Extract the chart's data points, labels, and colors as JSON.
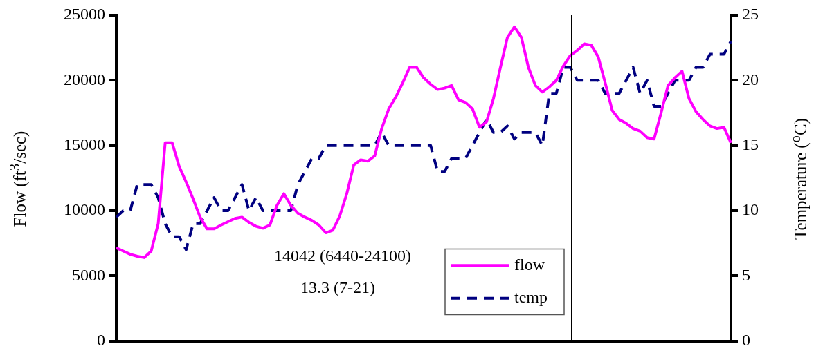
{
  "chart_data": {
    "type": "line",
    "ylabel": "Flow (ft$^{3}$/sec)",
    "y2label": "Temperature ($^{o}$C)",
    "categories": [
      null,
      null,
      null,
      null,
      null,
      null,
      null,
      null,
      null,
      null,
      null,
      null,
      null,
      null,
      null,
      null,
      null,
      null,
      null,
      null,
      null,
      null,
      null,
      null,
      null,
      null,
      null,
      null,
      null,
      null,
      null,
      null,
      null,
      null,
      null,
      null,
      null,
      null,
      null,
      null,
      null,
      null,
      null,
      null,
      null,
      null,
      null,
      null,
      null,
      null,
      null,
      null,
      null,
      null,
      null,
      null,
      null,
      null,
      null,
      null,
      null,
      null,
      null,
      null,
      null,
      null,
      null,
      null,
      null,
      null,
      null,
      null,
      null,
      null,
      null,
      null,
      null,
      null,
      null,
      null,
      null,
      null,
      null,
      null,
      null,
      null,
      null,
      null,
      null
    ],
    "series": [
      {
        "name": "flow",
        "color": "#ff00ff",
        "line_style": "solid",
        "values": [
          7150,
          6900,
          6650,
          6500,
          6400,
          6900,
          9000,
          15200,
          15200,
          13400,
          12200,
          10900,
          9500,
          8600,
          8600,
          8900,
          9150,
          9400,
          9500,
          9100,
          8800,
          8650,
          8900,
          10400,
          11300,
          10400,
          9800,
          9500,
          9250,
          8900,
          8300,
          8500,
          9600,
          11300,
          13500,
          13900,
          13800,
          14200,
          16300,
          17800,
          18700,
          19800,
          21000,
          21000,
          20200,
          19700,
          19300,
          19400,
          19600,
          18500,
          18300,
          17800,
          16400,
          16800,
          18600,
          21000,
          23300,
          24100,
          23300,
          21000,
          19600,
          19100,
          19500,
          20000,
          21100,
          21900,
          22300,
          22800,
          22700,
          21800,
          19800,
          17700,
          17000,
          16700,
          16300,
          16100,
          15600,
          15500,
          17500,
          19600,
          20200,
          20700,
          18600,
          17600,
          17000,
          16500,
          16300,
          16400,
          15200
        ]
      },
      {
        "name": "temp",
        "color": "#000080",
        "line_style": "dashed",
        "axis": "y2",
        "values": [
          9.5,
          10,
          10,
          12,
          12,
          12,
          11,
          9,
          8,
          8,
          7,
          9,
          9,
          10,
          11,
          10,
          10,
          11,
          12,
          10,
          11,
          10,
          10,
          10,
          10,
          10,
          12,
          13,
          14,
          14,
          15,
          15,
          15,
          15,
          15,
          15,
          15,
          15,
          16,
          15,
          15,
          15,
          15,
          15,
          15,
          15,
          13,
          13,
          14,
          14,
          14,
          15,
          16,
          17,
          16,
          16,
          16.5,
          15.5,
          16,
          16,
          16,
          15,
          19,
          19,
          21,
          21,
          20,
          20,
          20,
          20,
          19,
          19,
          19,
          20,
          21,
          19,
          20,
          18,
          18,
          19,
          20,
          20,
          20,
          21,
          21,
          22,
          22,
          22,
          23
        ]
      }
    ],
    "ylim": [
      0,
      25000
    ],
    "yticks": [
      0,
      5000,
      10000,
      15000,
      20000,
      25000
    ],
    "y2lim": [
      0,
      25
    ],
    "y2ticks": [
      0,
      5,
      10,
      15,
      20,
      25
    ],
    "annotations": [
      "14042 (6440-24100)",
      "13.3 (7-21)"
    ],
    "legend": "bottom",
    "grid": false,
    "marker": "none"
  }
}
